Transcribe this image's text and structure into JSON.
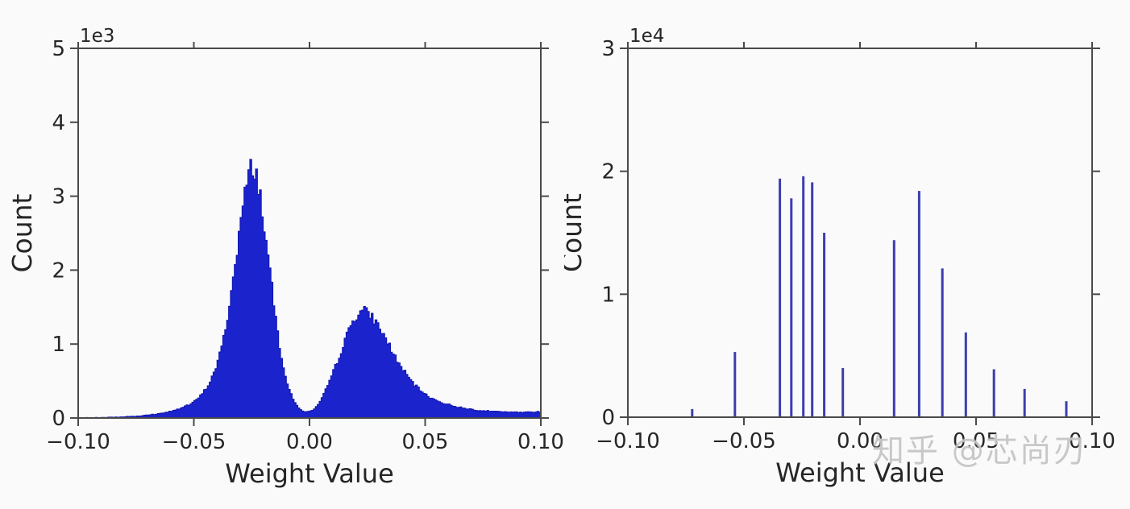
{
  "page": {
    "background": "#fafafa"
  },
  "watermark": {
    "text": "知乎 @芯尚刃",
    "color": "#c6c6c6"
  },
  "chart_data": [
    {
      "name": "continuous-weight-histogram",
      "type": "histogram",
      "title": "",
      "xlabel": "Weight Value",
      "ylabel": "Count",
      "scale_label": "1e3",
      "xlim": [
        -0.1,
        0.1
      ],
      "ylim": [
        0,
        5000
      ],
      "grid": false,
      "legend": null,
      "x_ticks": [
        {
          "v": -0.1,
          "label": "−0.10"
        },
        {
          "v": -0.05,
          "label": "−0.05"
        },
        {
          "v": 0.0,
          "label": "0.00"
        },
        {
          "v": 0.05,
          "label": "0.05"
        },
        {
          "v": 0.1,
          "label": "0.10"
        }
      ],
      "y_ticks": [
        {
          "v": 0,
          "label": "0"
        },
        {
          "v": 1000,
          "label": "1"
        },
        {
          "v": 2000,
          "label": "2"
        },
        {
          "v": 3000,
          "label": "3"
        },
        {
          "v": 4000,
          "label": "4"
        },
        {
          "v": 5000,
          "label": "5"
        }
      ],
      "fill_color": "#1b23cd",
      "edge_color": "#1015ae",
      "bins": 240,
      "noise_seed": 7,
      "peaks": [
        {
          "x": -0.025,
          "count": 3420
        },
        {
          "x": 0.023,
          "count": 1455
        }
      ],
      "profile": [
        [
          -0.1,
          0
        ],
        [
          -0.09,
          5
        ],
        [
          -0.085,
          10
        ],
        [
          -0.08,
          16
        ],
        [
          -0.075,
          25
        ],
        [
          -0.07,
          40
        ],
        [
          -0.065,
          60
        ],
        [
          -0.06,
          90
        ],
        [
          -0.056,
          130
        ],
        [
          -0.052,
          180
        ],
        [
          -0.05,
          215
        ],
        [
          -0.048,
          270
        ],
        [
          -0.046,
          340
        ],
        [
          -0.044,
          430
        ],
        [
          -0.042,
          560
        ],
        [
          -0.04,
          720
        ],
        [
          -0.038,
          950
        ],
        [
          -0.036,
          1250
        ],
        [
          -0.034,
          1650
        ],
        [
          -0.032,
          2100
        ],
        [
          -0.03,
          2600
        ],
        [
          -0.028,
          3000
        ],
        [
          -0.027,
          3180
        ],
        [
          -0.026,
          3320
        ],
        [
          -0.025,
          3420
        ],
        [
          -0.024,
          3380
        ],
        [
          -0.023,
          3300
        ],
        [
          -0.022,
          3150
        ],
        [
          -0.021,
          2950
        ],
        [
          -0.02,
          2700
        ],
        [
          -0.019,
          2450
        ],
        [
          -0.018,
          2200
        ],
        [
          -0.017,
          1950
        ],
        [
          -0.016,
          1700
        ],
        [
          -0.015,
          1450
        ],
        [
          -0.014,
          1220
        ],
        [
          -0.013,
          1000
        ],
        [
          -0.012,
          820
        ],
        [
          -0.011,
          660
        ],
        [
          -0.01,
          520
        ],
        [
          -0.009,
          410
        ],
        [
          -0.008,
          320
        ],
        [
          -0.007,
          250
        ],
        [
          -0.006,
          195
        ],
        [
          -0.005,
          150
        ],
        [
          -0.004,
          120
        ],
        [
          -0.003,
          100
        ],
        [
          -0.002,
          88
        ],
        [
          -0.001,
          84
        ],
        [
          0.0,
          90
        ],
        [
          0.001,
          100
        ],
        [
          0.002,
          120
        ],
        [
          0.003,
          150
        ],
        [
          0.004,
          190
        ],
        [
          0.005,
          240
        ],
        [
          0.006,
          300
        ],
        [
          0.007,
          370
        ],
        [
          0.008,
          450
        ],
        [
          0.01,
          600
        ],
        [
          0.012,
          760
        ],
        [
          0.014,
          930
        ],
        [
          0.016,
          1100
        ],
        [
          0.018,
          1260
        ],
        [
          0.02,
          1380
        ],
        [
          0.022,
          1440
        ],
        [
          0.023,
          1455
        ],
        [
          0.024,
          1450
        ],
        [
          0.026,
          1400
        ],
        [
          0.028,
          1330
        ],
        [
          0.03,
          1240
        ],
        [
          0.032,
          1130
        ],
        [
          0.034,
          1010
        ],
        [
          0.036,
          890
        ],
        [
          0.038,
          775
        ],
        [
          0.04,
          670
        ],
        [
          0.043,
          540
        ],
        [
          0.046,
          430
        ],
        [
          0.05,
          320
        ],
        [
          0.054,
          250
        ],
        [
          0.058,
          200
        ],
        [
          0.062,
          165
        ],
        [
          0.066,
          138
        ],
        [
          0.07,
          118
        ],
        [
          0.075,
          100
        ],
        [
          0.08,
          90
        ],
        [
          0.085,
          82
        ],
        [
          0.09,
          78
        ],
        [
          0.095,
          80
        ],
        [
          0.1,
          85
        ]
      ]
    },
    {
      "name": "quantized-weight-histogram",
      "type": "stem",
      "title": "",
      "xlabel": "Weight Value",
      "ylabel": "Count",
      "scale_label": "1e4",
      "xlim": [
        -0.1,
        0.1
      ],
      "ylim": [
        0,
        30000
      ],
      "grid": false,
      "legend": null,
      "x_ticks": [
        {
          "v": -0.1,
          "label": "−0.10"
        },
        {
          "v": -0.05,
          "label": "−0.05"
        },
        {
          "v": 0.0,
          "label": "0.00"
        },
        {
          "v": 0.05,
          "label": "0.05"
        },
        {
          "v": 0.1,
          "label": "0.10"
        }
      ],
      "y_ticks": [
        {
          "v": 0,
          "label": "0"
        },
        {
          "v": 10000,
          "label": "1"
        },
        {
          "v": 20000,
          "label": "2"
        },
        {
          "v": 30000,
          "label": "3"
        }
      ],
      "line_color": "#3d3daf",
      "line_width": 3,
      "spikes": [
        [
          -0.0723,
          660
        ],
        [
          -0.0539,
          5300
        ],
        [
          -0.0345,
          19400
        ],
        [
          -0.0296,
          17800
        ],
        [
          -0.0244,
          19600
        ],
        [
          -0.0206,
          19100
        ],
        [
          -0.0154,
          15000
        ],
        [
          -0.0074,
          4000
        ],
        [
          0.0147,
          14400
        ],
        [
          0.0255,
          18400
        ],
        [
          0.0355,
          12100
        ],
        [
          0.0456,
          6900
        ],
        [
          0.0577,
          3900
        ],
        [
          0.0709,
          2300
        ],
        [
          0.0889,
          1300
        ]
      ]
    }
  ]
}
